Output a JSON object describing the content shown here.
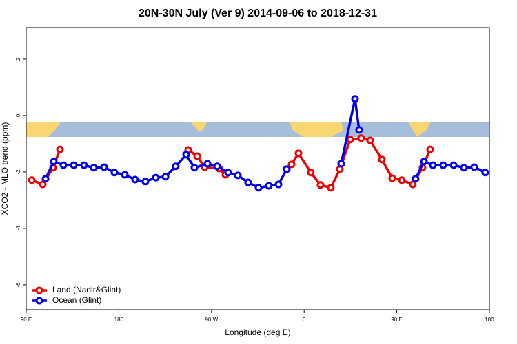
{
  "chart_data": {
    "type": "line",
    "title": "20N-30N July (Ver 9)   2014-09-06 to 2018-12-31",
    "xlabel": "Longitude (deg E)",
    "ylabel": "XCO2 - MLO trend (ppm)",
    "xlim": [
      90,
      540
    ],
    "xticks": [
      {
        "value": 90,
        "label": "90 E"
      },
      180,
      {
        "value": 270,
        "label": "90 W"
      },
      {
        "value": 360,
        "label": "0"
      },
      {
        "value": 450,
        "label": "90 E"
      },
      {
        "value": 540,
        "label": "180"
      }
    ],
    "ylim": [
      -6.88,
      3.12
    ],
    "yticks": [
      -6,
      -4,
      -2,
      0,
      2
    ],
    "legend": "bottom-left",
    "series": [
      {
        "name": "Land (Nadir&Glint)",
        "color": "#ee0000",
        "x": [
          95.4,
          106.1,
          116.1,
          122.8,
          null,
          247.4,
          256.1,
          263.4,
          277.5,
          283.5,
          null,
          343.1,
          347.8,
          354.5,
          366.5,
          375.9,
          385.9,
          394.7,
          404.7,
          415.4,
          424.1,
          435.5,
          445.6,
          454.9,
          465.6,
          475.0,
          482.4
        ],
        "values": [
          -2.29,
          -2.44,
          -1.85,
          -1.2,
          null,
          -1.22,
          -1.44,
          -1.83,
          -1.88,
          -2.1,
          null,
          -1.9,
          -1.73,
          -1.34,
          -2.02,
          -2.46,
          -2.56,
          -1.9,
          -0.85,
          -0.8,
          -0.88,
          -1.56,
          -2.22,
          -2.29,
          -2.44,
          -1.85,
          -1.2
        ]
      },
      {
        "name": "Ocean (Glint)",
        "color": "#0000ee",
        "x": [
          108.8,
          116.8,
          126.2,
          136.2,
          146.2,
          155.6,
          165.7,
          175.7,
          185.8,
          195.8,
          205.8,
          215.9,
          225.3,
          235.3,
          245.3,
          253.4,
          266.1,
          275.5,
          286.2,
          295.6,
          305.6,
          315.7,
          325.7,
          335.1,
          343.1,
          null,
          396.0,
          409.4,
          413.4,
          null,
          468.3,
          476.4,
          485.1,
          495.1,
          505.2,
          515.2,
          525.2,
          535.9
        ],
        "values": [
          -2.24,
          -1.63,
          -1.76,
          -1.76,
          -1.76,
          -1.85,
          -1.83,
          -2.02,
          -2.1,
          -2.27,
          -2.34,
          -2.2,
          -2.17,
          -1.8,
          -1.39,
          -1.85,
          -1.71,
          -1.8,
          -2.02,
          -2.12,
          -2.37,
          -2.56,
          -2.49,
          -2.44,
          -1.9,
          null,
          -1.71,
          0.59,
          -0.51,
          null,
          -2.24,
          -1.63,
          -1.76,
          -1.76,
          -1.76,
          -1.85,
          -1.83,
          -2.02
        ]
      }
    ]
  }
}
